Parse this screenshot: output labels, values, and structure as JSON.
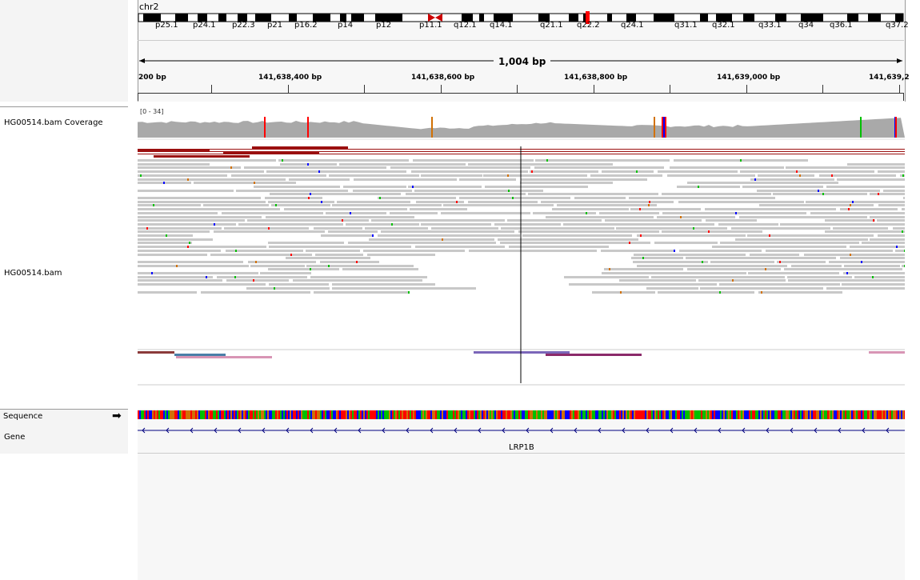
{
  "chromosome": "chr2",
  "cytobands": [
    "p25.1",
    "p24.1",
    "p22.3",
    "p21",
    "p16.2",
    "p14",
    "p12",
    "p11.1",
    "q12.1",
    "q14.1",
    "q21.1",
    "q22.2",
    "q24.1",
    "q31.1",
    "q32.1",
    "q33.1",
    "q34",
    "q36.1",
    "q37.2"
  ],
  "ruler": {
    "span_label": "1,004 bp",
    "ticks": [
      "200 bp",
      "141,638,400 bp",
      "141,638,600 bp",
      "141,638,800 bp",
      "141,639,000 bp",
      "141,639,2"
    ]
  },
  "tracks": {
    "coverage_name": "HG00514.bam Coverage",
    "coverage_range": "[0 - 34]",
    "alignment_name": "HG00514.bam",
    "sequence_name": "Sequence",
    "gene_name": "Gene"
  },
  "gene": {
    "label": "LRP1B"
  },
  "colors": {
    "read": "#c8c8c8",
    "coverage": "#a9a9a9",
    "discordant": "#9b1010",
    "A": "#00c000",
    "C": "#0000ff",
    "G": "#d17105",
    "T": "#ff0000",
    "gene_line": "#000080"
  }
}
